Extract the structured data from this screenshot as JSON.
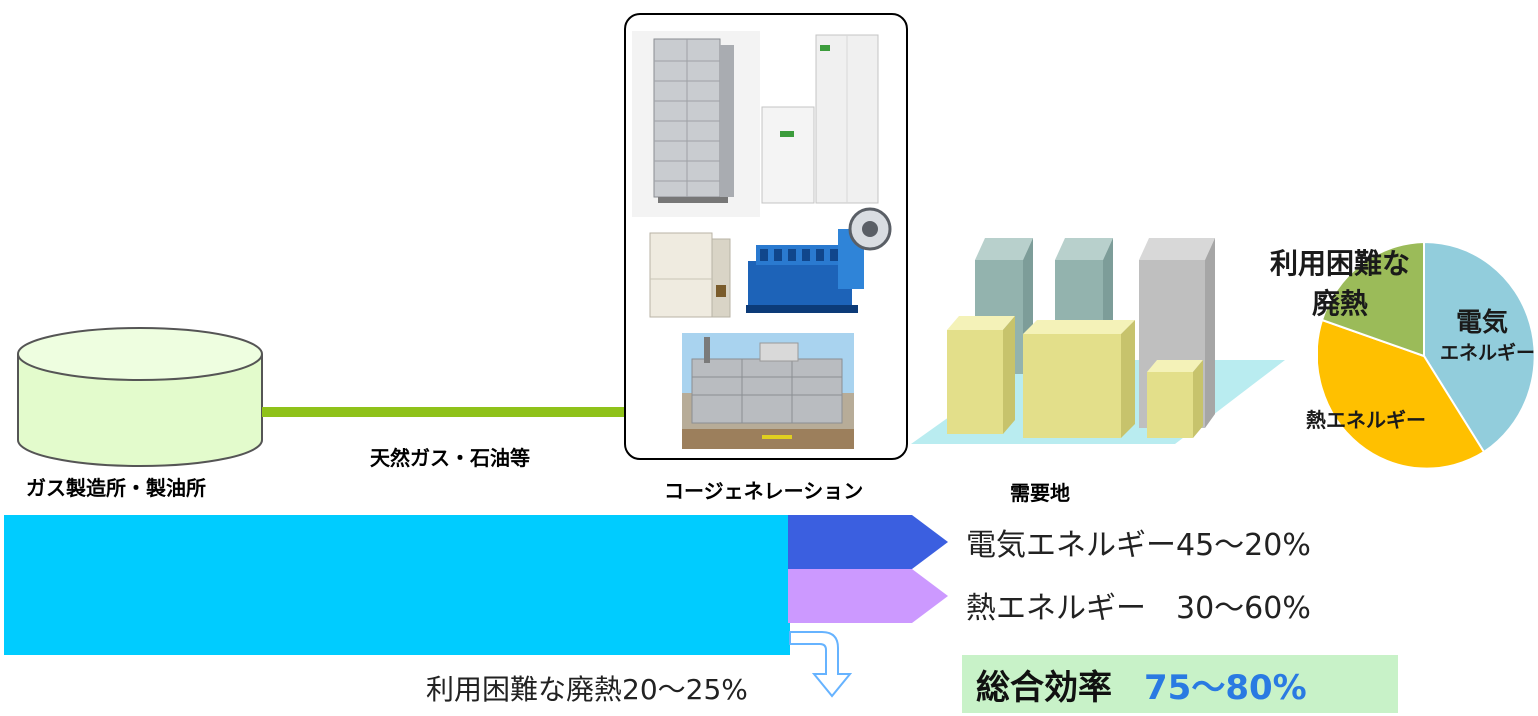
{
  "labels": {
    "gas_plant": "ガス製造所・製油所",
    "fuel": "天然ガス・石油等",
    "cogeneration": "コージェネレーション",
    "demand_site": "需要地"
  },
  "pie": {
    "waste_heat_line1": "利用困難な",
    "waste_heat_line2": "廃熱",
    "electric_line1": "電気",
    "electric_line2": "エネルギー",
    "heat": "熱エネルギー",
    "colors": {
      "electric": "#92cddc",
      "heat": "#ffc000",
      "waste": "#9bbb59"
    }
  },
  "outputs": {
    "electric": "電気エネルギー45〜20%",
    "heat": "熱エネルギー　30〜60%",
    "waste": "利用困難な廃熱20〜25%"
  },
  "efficiency": {
    "label": "総合効率",
    "value": "75〜80%"
  },
  "colors": {
    "main_flow": "#00ccff",
    "electric_arrow": "#3b5fe0",
    "heat_arrow": "#cc99ff",
    "pipe": "#8fc21a",
    "tank": "#e3fbcc"
  }
}
